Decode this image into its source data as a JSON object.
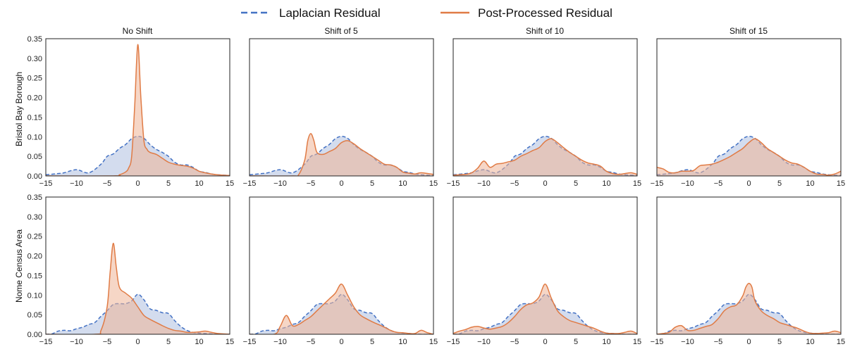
{
  "colors": {
    "laplacian": "#4472c4",
    "laplacian_fill": "#aebfe0",
    "postprocessed": "#e07b45",
    "postprocessed_fill": "#eeb597"
  },
  "legend": [
    {
      "label": "Laplacian Residual",
      "style": "dashed",
      "color": "#4472c4"
    },
    {
      "label": "Post-Processed Residual",
      "style": "solid",
      "color": "#e07b45"
    }
  ],
  "columns": [
    "No Shift",
    "Shift of 5",
    "Shift of 10",
    "Shift of 15"
  ],
  "rows": [
    "Bristol Bay Borough",
    "Nome Census Area"
  ],
  "chart_data": {
    "type": "area",
    "xlim": [
      -15,
      15
    ],
    "ylim": [
      0,
      0.35
    ],
    "x_ticks": [
      -15,
      -10,
      -5,
      0,
      5,
      10,
      15
    ],
    "y_ticks": [
      0.0,
      0.05,
      0.1,
      0.15,
      0.2,
      0.25,
      0.3,
      0.35
    ],
    "y_tick_labels": [
      "0.00",
      "0.05",
      "0.10",
      "0.15",
      "0.20",
      "0.25",
      "0.30",
      "0.35"
    ],
    "x_tick_labels": [
      "−15",
      "−10",
      "−5",
      "0",
      "5",
      "10",
      "15"
    ],
    "series_names": [
      "Laplacian Residual",
      "Post-Processed Residual"
    ],
    "laplacian": {
      "Bristol Bay Borough": {
        "x": [
          -15,
          -13,
          -12,
          -10,
          -8,
          -6,
          -5,
          -4,
          -3,
          -2,
          -1,
          0,
          1,
          2,
          3,
          4,
          5,
          6,
          7,
          8,
          9,
          10,
          11,
          12,
          13,
          15
        ],
        "y": [
          0.003,
          0.006,
          0.008,
          0.016,
          0.008,
          0.03,
          0.05,
          0.056,
          0.07,
          0.08,
          0.095,
          0.101,
          0.096,
          0.08,
          0.068,
          0.06,
          0.05,
          0.035,
          0.028,
          0.028,
          0.022,
          0.012,
          0.009,
          0.005,
          0.003,
          0.001
        ]
      },
      "Nome Census Area": {
        "x": [
          -15,
          -14,
          -13,
          -12,
          -11,
          -10,
          -9,
          -8,
          -7,
          -6,
          -5,
          -4,
          -3,
          -2,
          -1,
          0,
          1,
          2,
          3,
          4,
          5,
          6,
          7,
          8,
          9,
          10,
          11,
          12,
          13,
          15
        ],
        "y": [
          0.0,
          0.001,
          0.008,
          0.01,
          0.009,
          0.014,
          0.018,
          0.025,
          0.03,
          0.046,
          0.06,
          0.076,
          0.078,
          0.078,
          0.085,
          0.102,
          0.088,
          0.065,
          0.061,
          0.055,
          0.053,
          0.035,
          0.02,
          0.01,
          0.005,
          0.003,
          0.002,
          0.001,
          0.0,
          0.0
        ]
      }
    },
    "postprocessed": {
      "Bristol Bay Borough": {
        "No Shift": {
          "x": [
            -15,
            -4,
            -3,
            -2,
            -1.5,
            -1,
            -0.5,
            0,
            0.5,
            1,
            1.5,
            2,
            3,
            4,
            5,
            6,
            7,
            8,
            9,
            10,
            11,
            12,
            13,
            15
          ],
          "y": [
            0.0,
            0.0,
            0.003,
            0.01,
            0.02,
            0.05,
            0.18,
            0.335,
            0.2,
            0.09,
            0.068,
            0.06,
            0.055,
            0.045,
            0.035,
            0.03,
            0.027,
            0.025,
            0.02,
            0.012,
            0.008,
            0.005,
            0.003,
            0.001
          ]
        },
        "Shift of 5": {
          "x": [
            -15,
            -8,
            -7,
            -6,
            -5.5,
            -5,
            -4.5,
            -4,
            -3,
            -2,
            -1,
            0,
            1,
            2,
            3,
            4,
            5,
            6,
            7,
            8,
            9,
            10,
            11,
            12,
            13,
            15
          ],
          "y": [
            0.0,
            0.0,
            0.003,
            0.04,
            0.09,
            0.108,
            0.09,
            0.06,
            0.055,
            0.062,
            0.07,
            0.085,
            0.09,
            0.082,
            0.07,
            0.06,
            0.05,
            0.04,
            0.03,
            0.028,
            0.022,
            0.01,
            0.007,
            0.005,
            0.008,
            0.004
          ]
        },
        "Shift of 10": {
          "x": [
            -15,
            -13,
            -12,
            -11,
            -10,
            -9,
            -8,
            -7,
            -6,
            -5,
            -4,
            -3,
            -2,
            -1,
            0,
            1,
            2,
            3,
            4,
            5,
            6,
            7,
            8,
            9,
            10,
            11,
            12,
            13,
            14,
            15
          ],
          "y": [
            0.002,
            0.004,
            0.008,
            0.02,
            0.038,
            0.022,
            0.03,
            0.032,
            0.036,
            0.04,
            0.05,
            0.057,
            0.065,
            0.072,
            0.088,
            0.095,
            0.085,
            0.072,
            0.06,
            0.05,
            0.04,
            0.033,
            0.03,
            0.025,
            0.012,
            0.006,
            0.004,
            0.006,
            0.008,
            0.004
          ]
        },
        "Shift of 15": {
          "x": [
            -15,
            -14,
            -13,
            -12,
            -11,
            -10,
            -9,
            -8,
            -7,
            -6,
            -5,
            -4,
            -3,
            -2,
            -1,
            0,
            1,
            2,
            3,
            4,
            5,
            6,
            7,
            8,
            9,
            10,
            11,
            12,
            13,
            14,
            15
          ],
          "y": [
            0.022,
            0.018,
            0.009,
            0.008,
            0.012,
            0.012,
            0.014,
            0.026,
            0.028,
            0.03,
            0.035,
            0.042,
            0.05,
            0.06,
            0.07,
            0.085,
            0.095,
            0.085,
            0.07,
            0.06,
            0.05,
            0.04,
            0.033,
            0.03,
            0.022,
            0.012,
            0.005,
            0.004,
            0.002,
            0.005,
            0.012
          ]
        }
      },
      "Nome Census Area": {
        "No Shift": {
          "x": [
            -15,
            -7,
            -6,
            -5,
            -4.5,
            -4,
            -3.5,
            -3,
            -2,
            -1,
            0,
            1,
            2,
            3,
            4,
            5,
            6,
            7,
            8,
            9,
            10,
            11,
            12,
            13,
            15
          ],
          "y": [
            0.0,
            0.0,
            0.01,
            0.07,
            0.16,
            0.232,
            0.17,
            0.12,
            0.105,
            0.092,
            0.07,
            0.048,
            0.038,
            0.03,
            0.022,
            0.015,
            0.01,
            0.008,
            0.005,
            0.005,
            0.006,
            0.008,
            0.005,
            0.002,
            0.0
          ]
        },
        "Shift of 5": {
          "x": [
            -15,
            -11,
            -10,
            -9,
            -8,
            -7,
            -6,
            -5,
            -4,
            -3,
            -2,
            -1,
            0,
            1,
            2,
            3,
            4,
            5,
            6,
            7,
            8,
            9,
            10,
            11,
            12,
            13,
            14,
            15
          ],
          "y": [
            0.0,
            0.0,
            0.02,
            0.048,
            0.022,
            0.025,
            0.035,
            0.045,
            0.06,
            0.075,
            0.09,
            0.105,
            0.128,
            0.1,
            0.07,
            0.05,
            0.04,
            0.032,
            0.025,
            0.018,
            0.01,
            0.005,
            0.004,
            0.002,
            0.002,
            0.01,
            0.004,
            0.0
          ]
        },
        "Shift of 10": {
          "x": [
            -15,
            -14,
            -13,
            -12,
            -11,
            -10,
            -9,
            -8,
            -7,
            -6,
            -5,
            -4,
            -3,
            -2,
            -1,
            0,
            1,
            2,
            3,
            4,
            5,
            6,
            7,
            8,
            9,
            10,
            11,
            12,
            13,
            14,
            15
          ],
          "y": [
            0.002,
            0.008,
            0.012,
            0.018,
            0.02,
            0.016,
            0.013,
            0.016,
            0.02,
            0.03,
            0.045,
            0.063,
            0.075,
            0.08,
            0.095,
            0.128,
            0.092,
            0.06,
            0.045,
            0.035,
            0.03,
            0.025,
            0.02,
            0.015,
            0.008,
            0.003,
            0.002,
            0.002,
            0.005,
            0.008,
            0.002
          ]
        },
        "Shift of 15": {
          "x": [
            -15,
            -14,
            -13,
            -12,
            -11,
            -10,
            -9,
            -8,
            -7,
            -6,
            -5,
            -4,
            -3,
            -2,
            -1,
            -0.5,
            0,
            0.5,
            1,
            2,
            3,
            4,
            5,
            6,
            7,
            8,
            9,
            10,
            11,
            12,
            13,
            14,
            15
          ],
          "y": [
            0.0,
            0.002,
            0.005,
            0.018,
            0.022,
            0.01,
            0.01,
            0.015,
            0.02,
            0.025,
            0.04,
            0.06,
            0.07,
            0.075,
            0.098,
            0.12,
            0.13,
            0.12,
            0.085,
            0.06,
            0.048,
            0.04,
            0.03,
            0.025,
            0.02,
            0.015,
            0.008,
            0.003,
            0.002,
            0.003,
            0.004,
            0.008,
            0.004
          ]
        }
      }
    }
  }
}
